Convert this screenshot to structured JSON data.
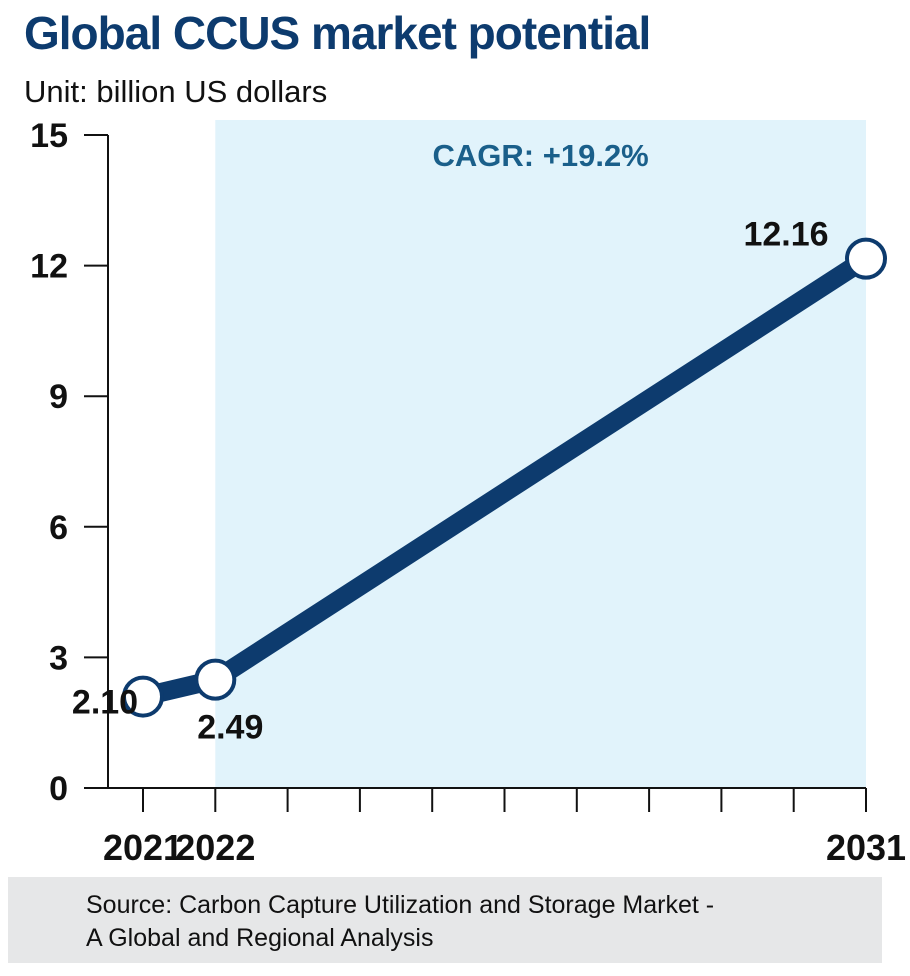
{
  "header": {
    "title": "Global CCUS market potential",
    "subtitle": "Unit: billion US dollars"
  },
  "source": {
    "line1": "Source: Carbon Capture Utilization and Storage Market -",
    "line2": "A Global and Regional Analysis"
  },
  "annotation": "CAGR: +19.2%",
  "colors": {
    "line": "#0d3b6e",
    "shade": "#e1f3fb",
    "annotation": "#1a5f8a",
    "axis": "#111111"
  },
  "chart_data": {
    "type": "line",
    "title": "Global CCUS market potential",
    "ylabel": "Unit: billion US dollars",
    "xlim": [
      2021,
      2031
    ],
    "ylim": [
      0,
      15
    ],
    "yticks": [
      0,
      3,
      6,
      9,
      12,
      15
    ],
    "xtick_labels": [
      "2021",
      "2022",
      "2031"
    ],
    "shaded_range": [
      2022,
      2031
    ],
    "series": [
      {
        "points": [
          {
            "x": 2021,
            "y": 2.1,
            "label": "2.10"
          },
          {
            "x": 2022,
            "y": 2.49,
            "label": "2.49"
          },
          {
            "x": 2031,
            "y": 12.16,
            "label": "12.16"
          }
        ]
      }
    ]
  }
}
